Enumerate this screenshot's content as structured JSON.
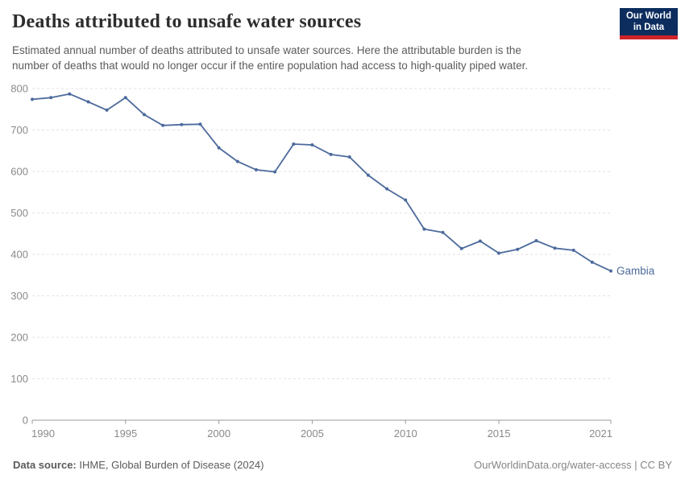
{
  "header": {
    "title": "Deaths attributed to unsafe water sources",
    "subtitle_line1": "Estimated annual number of deaths attributed to unsafe water sources. Here the attributable burden is the",
    "subtitle_line2": "number of deaths that would no longer occur if the entire population had access to high-quality piped water.",
    "logo": {
      "line1": "Our World",
      "line2": "in Data",
      "bg_color": "#0c2d5e",
      "accent_color": "#d1232a"
    }
  },
  "chart_data": {
    "type": "line",
    "title": "Deaths attributed to unsafe water sources",
    "xlabel": "",
    "ylabel": "",
    "xlim": [
      1990,
      2021
    ],
    "ylim": [
      0,
      800
    ],
    "yticks": [
      0,
      100,
      200,
      300,
      400,
      500,
      600,
      700,
      800
    ],
    "xticks": [
      1990,
      1995,
      2000,
      2005,
      2010,
      2015,
      2021
    ],
    "grid": "dashed horizontal",
    "legend_position": "end-of-line-label",
    "series": [
      {
        "name": "Gambia",
        "color": "#4c6a9c",
        "x": [
          1990,
          1991,
          1992,
          1993,
          1994,
          1995,
          1996,
          1997,
          1998,
          1999,
          2000,
          2001,
          2002,
          2003,
          2004,
          2005,
          2006,
          2007,
          2008,
          2009,
          2010,
          2011,
          2012,
          2013,
          2014,
          2015,
          2016,
          2017,
          2018,
          2019,
          2020,
          2021
        ],
        "values": [
          774,
          778,
          787,
          768,
          748,
          778,
          737,
          711,
          713,
          714,
          657,
          624,
          604,
          599,
          666,
          664,
          641,
          635,
          591,
          558,
          531,
          461,
          453,
          414,
          432,
          403,
          412,
          433,
          415,
          410,
          381,
          360
        ]
      }
    ],
    "colors": {
      "grid": "#e2e2e2",
      "axis": "#999999",
      "tick_label": "#8a8a8a"
    }
  },
  "footer": {
    "datasource_label": "Data source:",
    "datasource_value": " IHME, Global Burden of Disease (2024)",
    "link": "OurWorldinData.org/water-access | CC BY"
  }
}
